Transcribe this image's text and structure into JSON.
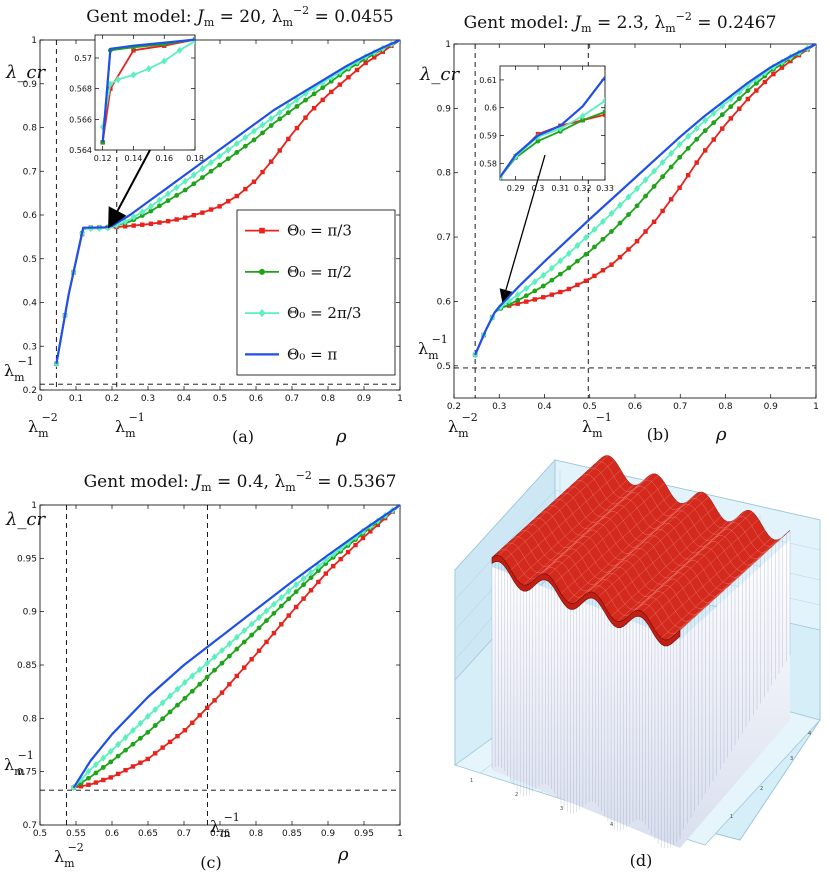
{
  "figure": {
    "caption_d": "(d)"
  },
  "chart_data": [
    {
      "id": "a",
      "type": "line",
      "title": "Gent model: J_m = 20, λ_m^-2 = 0.0455",
      "caption": "(a)",
      "xlabel": "ρ",
      "ylabel": "λ_cr",
      "xlim": [
        0,
        1
      ],
      "ylim": [
        0.2,
        1
      ],
      "xticks": [
        "0",
        "0.1",
        "0.2",
        "0.3",
        "0.4",
        "0.5",
        "0.6",
        "0.7",
        "0.8",
        "0.9",
        "1"
      ],
      "yticks": [
        "0.2",
        "0.3",
        "0.4",
        "0.5",
        "0.6",
        "0.7",
        "0.8",
        "0.9",
        "1"
      ],
      "hline": {
        "y": 0.2132,
        "label": "λ_m^-1"
      },
      "vlines": [
        {
          "x": 0.0455,
          "label": "λ_m^-2"
        },
        {
          "x": 0.2132,
          "label": "λ_m^-1"
        }
      ],
      "series": [
        {
          "name": "Θ0 = π/3",
          "x": [
            0.0455,
            0.08,
            0.12,
            0.14,
            0.16,
            0.18,
            0.2,
            0.25,
            0.3,
            0.35,
            0.4,
            0.45,
            0.5,
            0.55,
            0.6,
            0.65,
            0.7,
            0.75,
            0.8,
            0.85,
            0.9,
            0.95,
            1.0
          ],
          "y": [
            0.26,
            0.42,
            0.567,
            0.571,
            0.571,
            0.5715,
            0.572,
            0.575,
            0.579,
            0.585,
            0.593,
            0.605,
            0.62,
            0.645,
            0.68,
            0.73,
            0.785,
            0.835,
            0.875,
            0.91,
            0.945,
            0.972,
            1.0
          ]
        },
        {
          "name": "Θ0 = π/2",
          "x": [
            0.0455,
            0.08,
            0.12,
            0.14,
            0.16,
            0.18,
            0.2,
            0.25,
            0.3,
            0.35,
            0.4,
            0.45,
            0.5,
            0.55,
            0.6,
            0.65,
            0.7,
            0.75,
            0.8,
            0.85,
            0.9,
            0.95,
            1.0
          ],
          "y": [
            0.26,
            0.42,
            0.57,
            0.571,
            0.571,
            0.572,
            0.574,
            0.585,
            0.605,
            0.63,
            0.655,
            0.685,
            0.715,
            0.745,
            0.775,
            0.81,
            0.84,
            0.87,
            0.9,
            0.93,
            0.955,
            0.978,
            1.0
          ]
        },
        {
          "name": "Θ0 = 2π/3",
          "x": [
            0.0455,
            0.08,
            0.12,
            0.14,
            0.16,
            0.18,
            0.2,
            0.25,
            0.3,
            0.35,
            0.4,
            0.45,
            0.5,
            0.55,
            0.6,
            0.65,
            0.7,
            0.75,
            0.8,
            0.85,
            0.9,
            0.95,
            1.0
          ],
          "y": [
            0.26,
            0.42,
            0.568,
            0.569,
            0.5695,
            0.57,
            0.572,
            0.59,
            0.615,
            0.645,
            0.675,
            0.705,
            0.735,
            0.765,
            0.795,
            0.825,
            0.855,
            0.885,
            0.91,
            0.935,
            0.96,
            0.98,
            1.0
          ]
        },
        {
          "name": "Θ0 = π",
          "x": [
            0.0455,
            0.08,
            0.12,
            0.14,
            0.16,
            0.18,
            0.2,
            0.25,
            0.3,
            0.35,
            0.4,
            0.45,
            0.5,
            0.55,
            0.6,
            0.65,
            0.7,
            0.75,
            0.8,
            0.85,
            0.9,
            0.95,
            1.0
          ],
          "y": [
            0.26,
            0.42,
            0.571,
            0.571,
            0.5715,
            0.572,
            0.575,
            0.6,
            0.63,
            0.66,
            0.69,
            0.72,
            0.75,
            0.78,
            0.81,
            0.84,
            0.865,
            0.89,
            0.915,
            0.94,
            0.962,
            0.982,
            1.0
          ]
        }
      ],
      "inset": {
        "xlim": [
          0.115,
          0.18
        ],
        "ylim": [
          0.564,
          0.5715
        ],
        "xticks": [
          "0.12",
          "0.14",
          "0.16",
          "0.18"
        ],
        "yticks": [
          "0.564",
          "0.566",
          "0.568",
          "0.57"
        ],
        "series": [
          {
            "name": "Θ0 = π/3",
            "x": [
              0.12,
              0.125,
              0.14,
              0.16,
              0.18
            ],
            "y": [
              0.5645,
              0.568,
              0.5705,
              0.5708,
              0.5712
            ]
          },
          {
            "name": "Θ0 = π/2",
            "x": [
              0.12,
              0.125,
              0.14,
              0.16,
              0.18
            ],
            "y": [
              0.5645,
              0.5705,
              0.5707,
              0.5709,
              0.5712
            ]
          },
          {
            "name": "Θ0 = 2π/3",
            "x": [
              0.12,
              0.125,
              0.13,
              0.14,
              0.15,
              0.16,
              0.17,
              0.18
            ],
            "y": [
              0.5655,
              0.5683,
              0.5686,
              0.5689,
              0.5693,
              0.5698,
              0.5705,
              0.5711
            ]
          },
          {
            "name": "Θ0 = π",
            "x": [
              0.12,
              0.125,
              0.14,
              0.16,
              0.18
            ],
            "y": [
              0.5645,
              0.5706,
              0.5708,
              0.571,
              0.5712
            ]
          }
        ]
      },
      "legend": [
        "Θ0 = π/3",
        "Θ0 = π/2",
        "Θ0 = 2π/3",
        "Θ0 = π"
      ]
    },
    {
      "id": "b",
      "type": "line",
      "title": "Gent model: J_m = 2.3, λ_m^-2 = 0.2467",
      "caption": "(b)",
      "xlabel": "ρ",
      "ylabel": "λ_cr",
      "xlim": [
        0.2,
        1
      ],
      "ylim": [
        0.45,
        1
      ],
      "xticks": [
        "0.2",
        "0.3",
        "0.4",
        "0.5",
        "0.6",
        "0.7",
        "0.8",
        "0.9",
        "1"
      ],
      "yticks": [
        "0.5",
        "0.6",
        "0.7",
        "0.8",
        "0.9",
        "1"
      ],
      "hline": {
        "y": 0.4967,
        "label": "λ_m^-1"
      },
      "vlines": [
        {
          "x": 0.2467,
          "label": "λ_m^-2"
        },
        {
          "x": 0.4967,
          "label": "λ_m^-1"
        }
      ],
      "series": [
        {
          "name": "Θ0 = π/3",
          "x": [
            0.2467,
            0.27,
            0.29,
            0.3,
            0.35,
            0.4,
            0.45,
            0.5,
            0.55,
            0.6,
            0.65,
            0.7,
            0.75,
            0.8,
            0.85,
            0.9,
            0.95,
            1.0
          ],
          "y": [
            0.517,
            0.555,
            0.583,
            0.59,
            0.598,
            0.607,
            0.618,
            0.635,
            0.658,
            0.69,
            0.73,
            0.778,
            0.83,
            0.875,
            0.915,
            0.95,
            0.977,
            1.0
          ]
        },
        {
          "name": "Θ0 = π/2",
          "x": [
            0.2467,
            0.27,
            0.29,
            0.3,
            0.35,
            0.4,
            0.45,
            0.5,
            0.55,
            0.6,
            0.65,
            0.7,
            0.75,
            0.8,
            0.85,
            0.9,
            0.95,
            1.0
          ],
          "y": [
            0.517,
            0.555,
            0.583,
            0.588,
            0.605,
            0.625,
            0.65,
            0.678,
            0.71,
            0.745,
            0.785,
            0.825,
            0.862,
            0.895,
            0.928,
            0.958,
            0.98,
            1.0
          ]
        },
        {
          "name": "Θ0 = 2π/3",
          "x": [
            0.2467,
            0.27,
            0.29,
            0.3,
            0.35,
            0.4,
            0.45,
            0.5,
            0.55,
            0.6,
            0.65,
            0.7,
            0.75,
            0.8,
            0.85,
            0.9,
            0.95,
            1.0
          ],
          "y": [
            0.517,
            0.555,
            0.583,
            0.59,
            0.615,
            0.642,
            0.672,
            0.705,
            0.738,
            0.772,
            0.808,
            0.845,
            0.878,
            0.908,
            0.936,
            0.962,
            0.982,
            1.0
          ]
        },
        {
          "name": "Θ0 = π",
          "x": [
            0.2467,
            0.27,
            0.29,
            0.3,
            0.35,
            0.4,
            0.45,
            0.5,
            0.55,
            0.6,
            0.65,
            0.7,
            0.75,
            0.8,
            0.85,
            0.9,
            0.95,
            1.0
          ],
          "y": [
            0.517,
            0.555,
            0.583,
            0.592,
            0.628,
            0.662,
            0.695,
            0.728,
            0.76,
            0.792,
            0.824,
            0.856,
            0.886,
            0.913,
            0.94,
            0.964,
            0.983,
            1.0
          ]
        }
      ],
      "inset": {
        "xlim": [
          0.283,
          0.33
        ],
        "ylim": [
          0.574,
          0.615
        ],
        "xticks": [
          "0.29",
          "0.3",
          "0.31",
          "0.32",
          "0.33"
        ],
        "yticks": [
          "0.58",
          "0.59",
          "0.6",
          "0.61"
        ],
        "series": [
          {
            "name": "Θ0 = π/3",
            "x": [
              0.283,
              0.29,
              0.3,
              0.31,
              0.32,
              0.33
            ],
            "y": [
              0.575,
              0.5825,
              0.5905,
              0.5935,
              0.5955,
              0.5975
            ]
          },
          {
            "name": "Θ0 = π/2",
            "x": [
              0.283,
              0.29,
              0.3,
              0.31,
              0.32,
              0.33
            ],
            "y": [
              0.575,
              0.582,
              0.588,
              0.5915,
              0.5955,
              0.5985
            ]
          },
          {
            "name": "Θ0 = 2π/3",
            "x": [
              0.283,
              0.29,
              0.3,
              0.31,
              0.32,
              0.33
            ],
            "y": [
              0.575,
              0.5825,
              0.5895,
              0.5925,
              0.597,
              0.6025
            ]
          },
          {
            "name": "Θ0 = π",
            "x": [
              0.283,
              0.29,
              0.3,
              0.31,
              0.32,
              0.33
            ],
            "y": [
              0.575,
              0.583,
              0.59,
              0.5935,
              0.6005,
              0.611
            ]
          }
        ]
      }
    },
    {
      "id": "c",
      "type": "line",
      "title": "Gent model: J_m = 0.4, λ_m^-2 = 0.5367",
      "caption": "(c)",
      "xlabel": "ρ",
      "ylabel": "λ_cr",
      "xlim": [
        0.5,
        1
      ],
      "ylim": [
        0.7,
        1
      ],
      "xticks": [
        "0.5",
        "0.55",
        "0.6",
        "0.65",
        "0.7",
        "0.75",
        "0.8",
        "0.85",
        "0.9",
        "0.95",
        "1"
      ],
      "yticks": [
        "0.7",
        "0.75",
        "0.8",
        "0.85",
        "0.9",
        "0.95",
        "1"
      ],
      "hline": {
        "y": 0.7326,
        "label": "λ_m^-1"
      },
      "vlines": [
        {
          "x": 0.5367,
          "label": "λ_m^-2"
        },
        {
          "x": 0.7326,
          "label": "λ_m^-1"
        }
      ],
      "series": [
        {
          "name": "Θ0 = π/3",
          "x": [
            0.5467,
            0.57,
            0.6,
            0.65,
            0.7,
            0.75,
            0.8,
            0.85,
            0.9,
            0.95,
            1.0
          ],
          "y": [
            0.735,
            0.738,
            0.745,
            0.762,
            0.788,
            0.822,
            0.86,
            0.9,
            0.938,
            0.97,
            1.0
          ]
        },
        {
          "name": "Θ0 = π/2",
          "x": [
            0.5467,
            0.57,
            0.6,
            0.65,
            0.7,
            0.75,
            0.8,
            0.85,
            0.9,
            0.95,
            1.0
          ],
          "y": [
            0.735,
            0.745,
            0.76,
            0.787,
            0.818,
            0.85,
            0.882,
            0.915,
            0.947,
            0.974,
            1.0
          ]
        },
        {
          "name": "Θ0 = 2π/3",
          "x": [
            0.5467,
            0.57,
            0.6,
            0.65,
            0.7,
            0.75,
            0.8,
            0.85,
            0.9,
            0.95,
            1.0
          ],
          "y": [
            0.735,
            0.752,
            0.77,
            0.802,
            0.833,
            0.862,
            0.892,
            0.922,
            0.95,
            0.976,
            1.0
          ]
        },
        {
          "name": "Θ0 = π",
          "x": [
            0.5467,
            0.57,
            0.6,
            0.65,
            0.7,
            0.75,
            0.8,
            0.85,
            0.9,
            0.95,
            1.0
          ],
          "y": [
            0.735,
            0.76,
            0.785,
            0.82,
            0.85,
            0.876,
            0.902,
            0.928,
            0.953,
            0.977,
            1.0
          ]
        }
      ]
    }
  ]
}
